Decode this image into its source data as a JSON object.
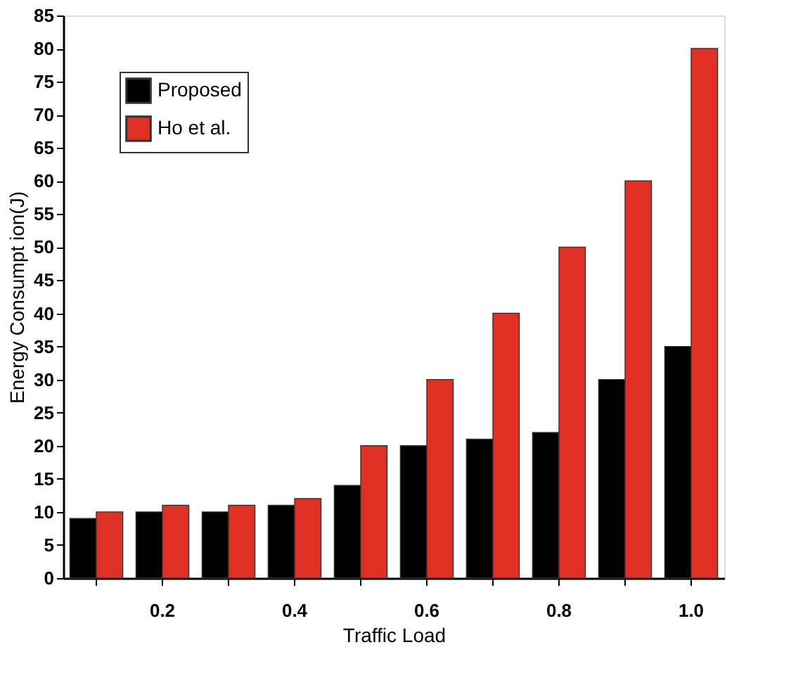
{
  "chart_data": {
    "type": "bar",
    "xlabel": "Traffic Load",
    "ylabel": "Energy Consumpt ion(J)",
    "categories": [
      null,
      "0.2",
      null,
      "0.4",
      null,
      "0.6",
      null,
      "0.8",
      null,
      "1.0"
    ],
    "series": [
      {
        "name": "Proposed",
        "color": "#000000",
        "values": [
          9,
          10,
          10,
          11,
          14,
          20,
          21,
          22,
          30,
          35
        ]
      },
      {
        "name": "Ho et al.",
        "color": "#e03024",
        "values": [
          10,
          11,
          11,
          12,
          20,
          30,
          40,
          50,
          60,
          80
        ]
      }
    ],
    "ylim": [
      0,
      85
    ],
    "yticks": [
      0,
      5,
      10,
      15,
      20,
      25,
      30,
      35,
      40,
      45,
      50,
      55,
      60,
      65,
      70,
      75,
      80,
      85
    ],
    "grid": false,
    "legend": "top left"
  }
}
